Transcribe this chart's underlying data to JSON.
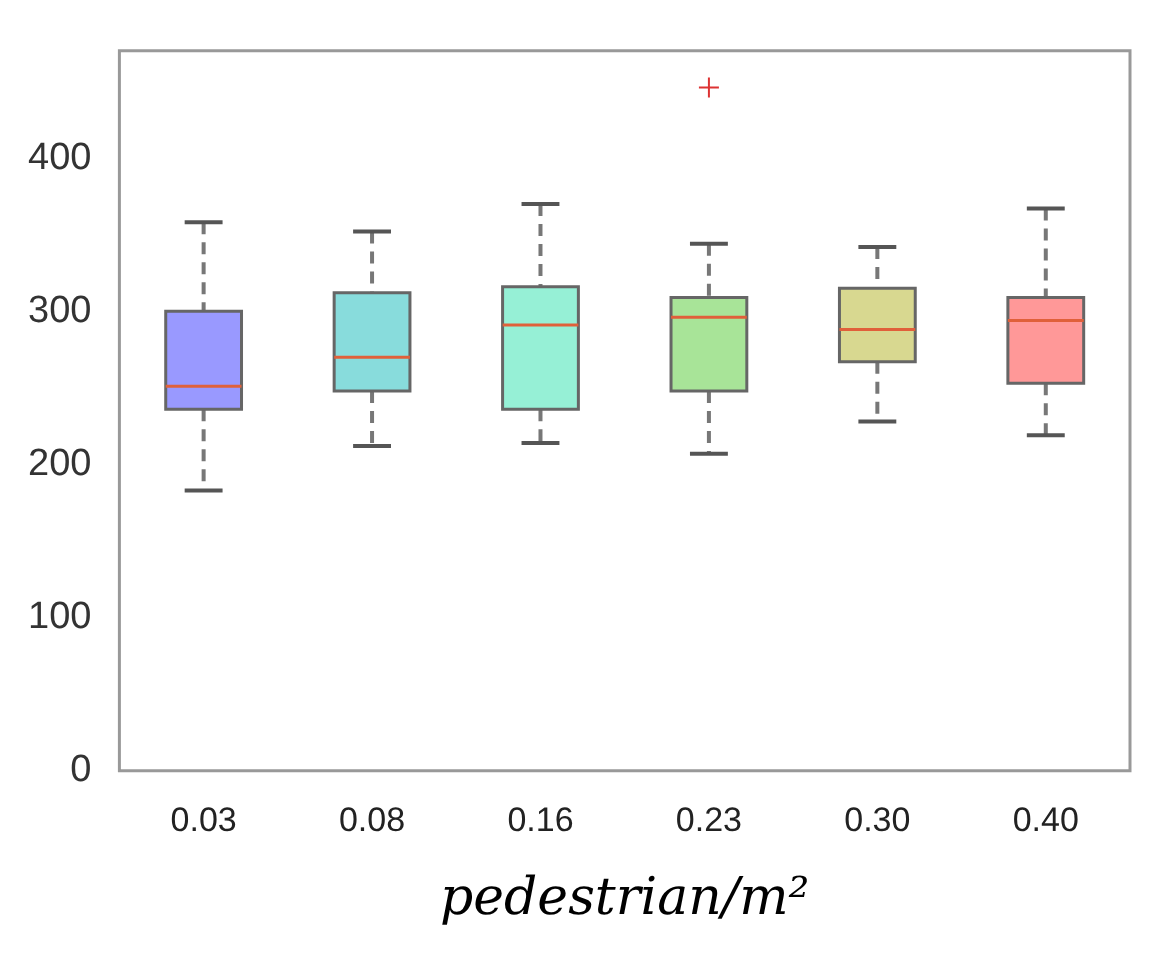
{
  "chart_data": {
    "type": "box",
    "xlabel": "pedestrian/m²",
    "categories": [
      "0.03",
      "0.08",
      "0.16",
      "0.23",
      "0.30",
      "0.40"
    ],
    "colors": [
      "#9999ff",
      "#88dcdc",
      "#96f0d6",
      "#a8e498",
      "#d8d890",
      "#ff9898"
    ],
    "boxes": [
      {
        "low": 183,
        "q1": 236,
        "median": 251,
        "q3": 300,
        "high": 358
      },
      {
        "low": 212,
        "q1": 248,
        "median": 270,
        "q3": 312,
        "high": 352
      },
      {
        "low": 214,
        "q1": 236,
        "median": 291,
        "q3": 316,
        "high": 370
      },
      {
        "low": 207,
        "q1": 248,
        "median": 296,
        "q3": 309,
        "high": 344,
        "outliers": [
          446
        ]
      },
      {
        "low": 228,
        "q1": 267,
        "median": 288,
        "q3": 315,
        "high": 342
      },
      {
        "low": 219,
        "q1": 253,
        "median": 294,
        "q3": 309,
        "high": 367
      }
    ],
    "ylim": [
      0,
      470
    ],
    "yticks": [
      0,
      100,
      200,
      300,
      400
    ],
    "grid": false,
    "legend": false
  }
}
